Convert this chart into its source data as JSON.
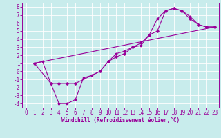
{
  "xlabel": "Windchill (Refroidissement éolien,°C)",
  "background_color": "#c8ecec",
  "line_color": "#990099",
  "grid_color": "#ffffff",
  "xlim": [
    -0.5,
    23.5
  ],
  "ylim": [
    -4.5,
    8.5
  ],
  "xticks": [
    0,
    1,
    2,
    3,
    4,
    5,
    6,
    7,
    8,
    9,
    10,
    11,
    12,
    13,
    14,
    15,
    16,
    17,
    18,
    19,
    20,
    21,
    22,
    23
  ],
  "yticks": [
    -4,
    -3,
    -2,
    -1,
    0,
    1,
    2,
    3,
    4,
    5,
    6,
    7,
    8
  ],
  "line1_x": [
    1,
    2,
    3,
    4,
    5,
    6,
    7,
    8,
    9,
    10,
    11,
    12,
    13,
    14,
    15,
    16,
    17,
    18,
    19,
    20,
    21,
    22,
    23
  ],
  "line1_y": [
    1.0,
    1.2,
    -1.5,
    -4.0,
    -4.0,
    -3.5,
    -0.8,
    -0.5,
    0.0,
    1.2,
    2.2,
    2.5,
    3.0,
    3.2,
    4.5,
    6.5,
    7.5,
    7.8,
    7.5,
    6.8,
    5.8,
    5.5,
    5.5
  ],
  "line2_x": [
    1,
    3,
    4,
    5,
    6,
    9,
    10,
    11,
    12,
    13,
    14,
    15,
    16,
    17,
    18,
    19,
    20,
    21,
    22,
    23
  ],
  "line2_y": [
    1.0,
    -1.5,
    -1.5,
    -1.5,
    -1.5,
    0.0,
    1.2,
    1.8,
    2.2,
    3.0,
    3.5,
    4.5,
    5.0,
    7.5,
    7.8,
    7.5,
    6.5,
    5.8,
    5.5,
    5.5
  ],
  "line3_x": [
    1,
    23
  ],
  "line3_y": [
    1.0,
    5.5
  ],
  "tick_fontsize": 5.5,
  "xlabel_fontsize": 5.5
}
